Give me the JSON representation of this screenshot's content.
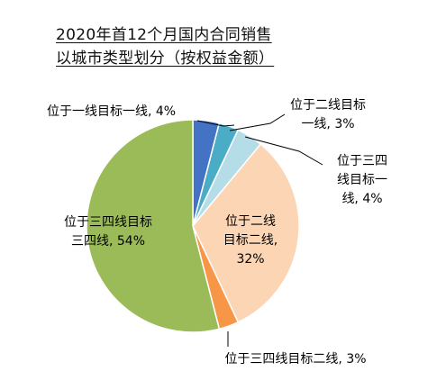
{
  "chart_data": {
    "type": "pie",
    "title_lines": [
      "2020年首12个月国内合同销售",
      "以城市类型划分（按权益金额）"
    ],
    "slices": [
      {
        "label": "位于一线目标一线",
        "value": 4,
        "value_text": "4%",
        "color": "#4472C4"
      },
      {
        "label": "位于二线目标一线",
        "value": 3,
        "value_text": "3%",
        "color": "#4BACC6"
      },
      {
        "label": "位于三四线目标一线",
        "value": 4,
        "value_text": "4%",
        "color": "#B4DDE8"
      },
      {
        "label": "位于二线目标二线",
        "value": 32,
        "value_text": "32%",
        "color": "#FCD5B4"
      },
      {
        "label": "位于三四线目标二线",
        "value": 3,
        "value_text": "3%",
        "color": "#F79646"
      },
      {
        "label": "位于三四线目标三四线",
        "value": 54,
        "value_text": "54%",
        "color": "#9BBB59"
      }
    ],
    "label_lines": [
      [
        "位于一线目标一线, 4%"
      ],
      [
        "位于二线目标",
        "一线, 3%"
      ],
      [
        "位于三四",
        "线目标一",
        "线, 4%"
      ],
      [
        "位于二线",
        "目标二线,",
        "32%"
      ],
      [
        "位于三四线目标二线, 3%"
      ],
      [
        "位于三四线目标",
        "三四线, 54%"
      ]
    ]
  }
}
